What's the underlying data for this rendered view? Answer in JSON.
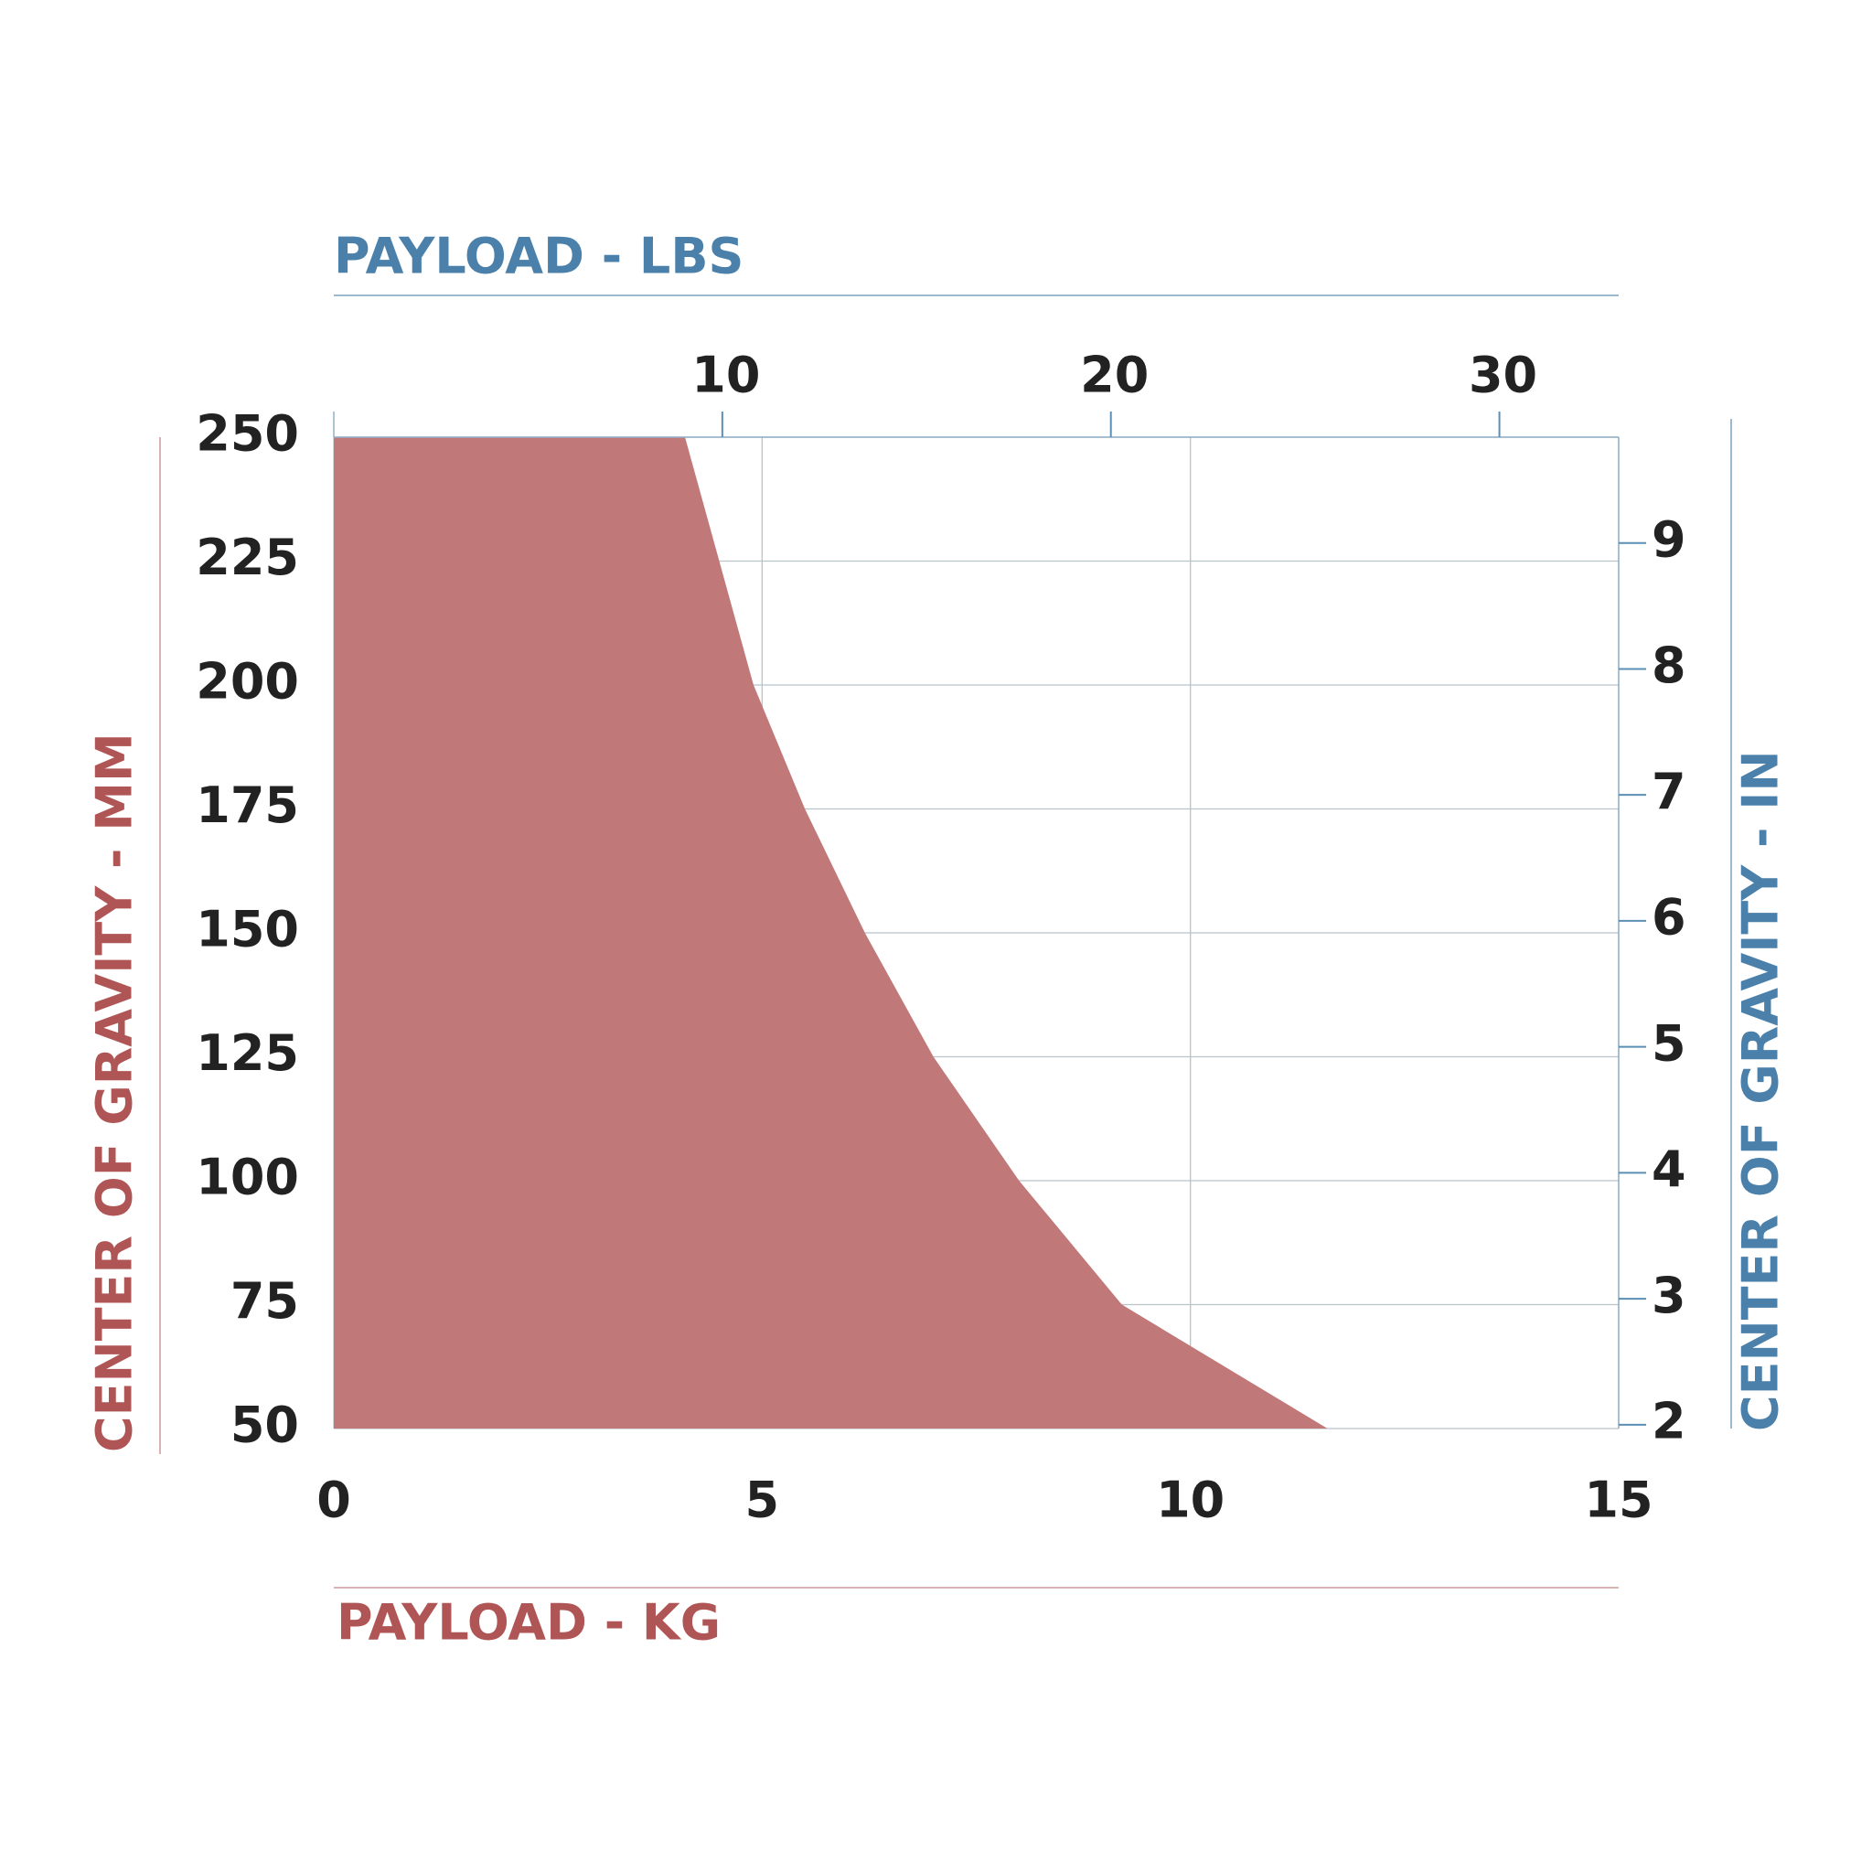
{
  "chart_data": {
    "type": "area",
    "x_title": "PAYLOAD - KG",
    "x2_title": "PAYLOAD - LBS",
    "y_title": "CENTER OF GRAVITY - MM",
    "y2_title": "CENTER OF GRAVITY - IN",
    "x": [
      0,
      4.1,
      4.5,
      4.9,
      5.5,
      6.2,
      7.0,
      8.0,
      9.2,
      11.6
    ],
    "values": [
      250,
      250,
      225,
      200,
      175,
      150,
      125,
      100,
      75,
      50
    ],
    "color": "#c07878",
    "xlim": [
      0,
      15
    ],
    "xticks": [
      0,
      5,
      10,
      15
    ],
    "ylim": [
      50,
      250
    ],
    "yticks": [
      50,
      75,
      100,
      125,
      150,
      175,
      200,
      225,
      250
    ],
    "x2lim": [
      0,
      33.07
    ],
    "x2ticks": [
      10,
      20,
      30
    ],
    "y2lim": [
      1.97,
      9.84
    ],
    "y2ticks": [
      2,
      3,
      4,
      5,
      6,
      7,
      8,
      9
    ],
    "grid": true
  }
}
